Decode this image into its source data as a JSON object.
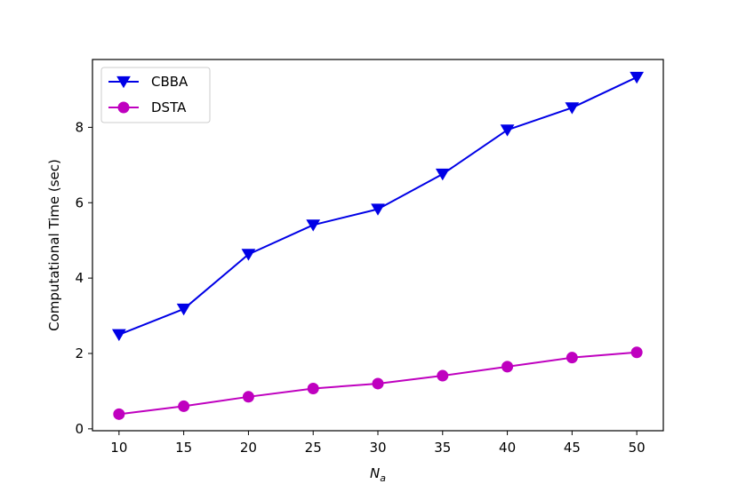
{
  "chart_data": {
    "type": "line",
    "x": [
      10,
      15,
      20,
      25,
      30,
      35,
      40,
      45,
      50
    ],
    "xlabel_main": "N",
    "xlabel_sub": "a",
    "ylabel": "Computational Time (sec)",
    "xlim": [
      7.95,
      52.05
    ],
    "ylim": [
      -0.05,
      9.8
    ],
    "xticks": [
      10,
      15,
      20,
      25,
      30,
      35,
      40,
      45,
      50
    ],
    "yticks": [
      0,
      2,
      4,
      6,
      8
    ],
    "grid": false,
    "legend_position": "top-left",
    "series": [
      {
        "name": "CBBA",
        "color": "#0000e6",
        "marker": "triangle-down",
        "values": [
          2.5,
          3.18,
          4.63,
          5.41,
          5.83,
          6.76,
          7.93,
          8.52,
          9.33
        ]
      },
      {
        "name": "DSTA",
        "color": "#bf00bf",
        "marker": "circle",
        "values": [
          0.39,
          0.6,
          0.85,
          1.07,
          1.2,
          1.41,
          1.65,
          1.89,
          2.03
        ]
      }
    ]
  }
}
